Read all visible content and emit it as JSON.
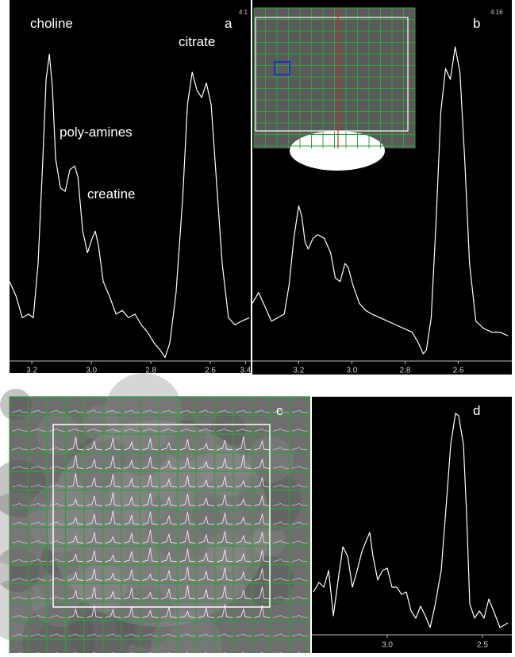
{
  "chart_data": [
    {
      "type": "line",
      "panel_label": "a",
      "annotations": [
        "choline",
        "citrate",
        "poly-amines",
        "creatine"
      ],
      "x": [
        3.275,
        3.253,
        3.232,
        3.211,
        3.195,
        3.179,
        3.163,
        3.152,
        3.141,
        3.131,
        3.12,
        3.104,
        3.088,
        3.072,
        3.056,
        3.045,
        3.029,
        3.013,
        2.997,
        2.987,
        2.976,
        2.96,
        2.939,
        2.917,
        2.896,
        2.875,
        2.853,
        2.832,
        2.811,
        2.789,
        2.768,
        2.752,
        2.736,
        2.715,
        2.693,
        2.677,
        2.661,
        2.645,
        2.629,
        2.613,
        2.597,
        2.581,
        2.56,
        2.539,
        2.517,
        2.496,
        2.469
      ],
      "values": [
        22,
        18,
        12,
        13,
        12,
        27,
        56,
        78,
        85,
        76,
        56,
        48,
        47,
        53,
        54,
        51,
        36,
        30,
        34,
        36,
        32,
        22,
        18,
        13,
        14,
        12,
        13,
        10,
        8,
        5,
        3,
        1,
        5,
        19,
        45,
        71,
        80,
        75,
        73,
        77,
        71,
        52,
        27,
        12,
        10,
        11,
        12
      ],
      "xlim": [
        3.275,
        2.464
      ],
      "ylim": [
        0,
        100
      ],
      "xticks": [
        3.2,
        3.0,
        2.8,
        2.6
      ],
      "color": "#ffffff"
    },
    {
      "type": "line",
      "panel_label": "b",
      "x": [
        3.374,
        3.35,
        3.326,
        3.302,
        3.278,
        3.254,
        3.236,
        3.218,
        3.2,
        3.188,
        3.176,
        3.164,
        3.146,
        3.128,
        3.104,
        3.08,
        3.062,
        3.044,
        3.026,
        3.014,
        2.996,
        2.972,
        2.948,
        2.924,
        2.894,
        2.864,
        2.834,
        2.804,
        2.774,
        2.75,
        2.732,
        2.72,
        2.702,
        2.684,
        2.666,
        2.648,
        2.63,
        2.612,
        2.594,
        2.576,
        2.558,
        2.534,
        2.504,
        2.474,
        2.444,
        2.414
      ],
      "values": [
        16,
        19,
        15,
        11,
        12,
        13,
        21,
        34,
        43,
        40,
        33,
        31,
        34,
        35,
        34,
        30,
        23,
        22,
        27,
        26,
        21,
        16,
        14,
        13,
        12,
        11,
        10,
        9,
        8,
        5,
        2,
        3,
        12,
        38,
        69,
        81,
        78,
        87,
        80,
        56,
        27,
        11,
        9,
        8,
        8,
        7
      ],
      "xlim": [
        3.374,
        2.399
      ],
      "ylim": [
        0,
        100
      ],
      "xticks": [
        3.4,
        3.2,
        3.0,
        2.8,
        2.6
      ],
      "color": "#ffffff"
    },
    {
      "type": "line",
      "panel_label": "d",
      "x": [
        3.388,
        3.358,
        3.333,
        3.308,
        3.283,
        3.258,
        3.233,
        3.208,
        3.183,
        3.158,
        3.133,
        3.108,
        3.092,
        3.075,
        3.05,
        3.025,
        3.0,
        2.975,
        2.95,
        2.925,
        2.9,
        2.875,
        2.85,
        2.825,
        2.8,
        2.775,
        2.75,
        2.717,
        2.692,
        2.667,
        2.642,
        2.625,
        2.6,
        2.583,
        2.567,
        2.542,
        2.517,
        2.492,
        2.467,
        2.442,
        2.408,
        2.367
      ],
      "values": [
        18,
        22,
        20,
        27,
        8,
        23,
        37,
        33,
        20,
        27,
        35,
        40,
        43,
        33,
        23,
        27,
        28,
        20,
        20,
        17,
        18,
        10,
        7,
        12,
        8,
        3,
        12,
        27,
        53,
        80,
        93,
        92,
        80,
        50,
        13,
        7,
        10,
        7,
        15,
        10,
        3,
        5
      ],
      "xlim": [
        3.396,
        2.346
      ],
      "ylim": [
        0,
        100
      ],
      "xticks": [
        3.0,
        2.5
      ],
      "color": "#ffffff"
    }
  ],
  "panel_c": {
    "panel_label": "c"
  },
  "corner_texts": [
    "4:1",
    "4:16"
  ]
}
